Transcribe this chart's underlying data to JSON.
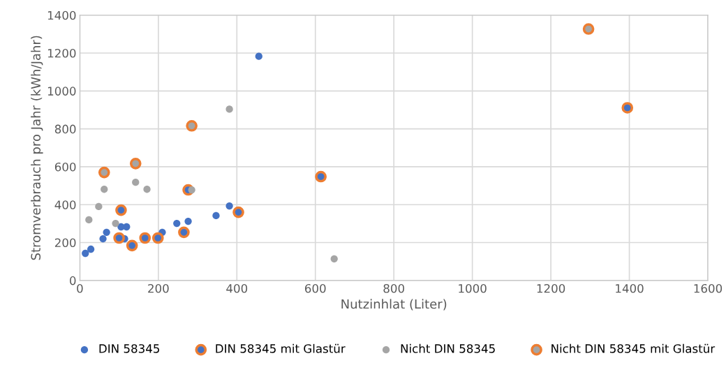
{
  "chart_data": {
    "type": "scatter",
    "xlabel": "Nutzinhlat (Liter)",
    "ylabel": "Stromverbrauch pro Jahr (kWh/Jahr)",
    "xlim": [
      0,
      1600
    ],
    "xticks": [
      0,
      200,
      400,
      600,
      800,
      1000,
      1200,
      1400,
      1600
    ],
    "ylim": [
      0,
      1400
    ],
    "yticks": [
      0,
      200,
      400,
      600,
      800,
      1000,
      1200,
      1400
    ],
    "grid": true,
    "legend": "bottom",
    "marker": "circle",
    "series": [
      {
        "name": "DIN 58345",
        "color": "#4472c4",
        "x": [
          14,
          28,
          59,
          68,
          105,
          119,
          114,
          210,
          247,
          276,
          347,
          381,
          456
        ],
        "values": [
          143,
          165,
          220,
          254,
          283,
          283,
          220,
          254,
          301,
          312,
          342,
          393,
          1183
        ]
      },
      {
        "name": "DIN 58345 mit Glastür",
        "color": "#ed7d31",
        "x": [
          100,
          133,
          166,
          199,
          265,
          404,
          105,
          276,
          614,
          1395
        ],
        "values": [
          224,
          184,
          224,
          224,
          254,
          360,
          371,
          478,
          548,
          911
        ]
      },
      {
        "name": "Nicht DIN 58345",
        "color": "#a5a5a5",
        "x": [
          23,
          48,
          62,
          91,
          142,
          171,
          285,
          381,
          648
        ],
        "values": [
          320,
          390,
          481,
          301,
          518,
          481,
          478,
          904,
          114
        ]
      },
      {
        "name": "Nicht DIN 58345 mit Glastür",
        "color": "#ed7d31",
        "x": [
          62,
          142,
          285,
          1296
        ],
        "values": [
          570,
          617,
          816,
          1327
        ]
      }
    ]
  }
}
